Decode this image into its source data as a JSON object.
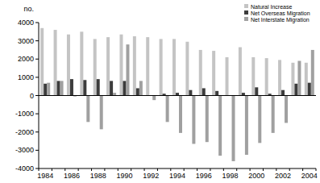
{
  "chart_data": {
    "type": "bar",
    "y_label": "no.",
    "categories": [
      "1984",
      null,
      "1986",
      null,
      "1988",
      null,
      "1990",
      null,
      "1992",
      null,
      "1994",
      null,
      "1996",
      null,
      "1998",
      null,
      "2000",
      null,
      "2002",
      null,
      "2004"
    ],
    "series": [
      {
        "name": "Natural Increase",
        "color": "#c4c4c4",
        "values": [
          3700,
          3600,
          3350,
          3500,
          3100,
          3200,
          3350,
          3250,
          3200,
          3100,
          3100,
          2950,
          2500,
          2450,
          2100,
          2650,
          2100,
          2050,
          1950,
          1800,
          1800
        ]
      },
      {
        "name": "Net Overseas Migration",
        "color": "#3c3c3c",
        "values": [
          650,
          800,
          900,
          850,
          900,
          800,
          800,
          400,
          0,
          100,
          150,
          300,
          400,
          250,
          0,
          150,
          450,
          100,
          300,
          650,
          700
        ]
      },
      {
        "name": "Net Interstate Migration",
        "color": "#a0a0a0",
        "values": [
          700,
          800,
          -50,
          -1450,
          -1850,
          150,
          2800,
          800,
          -250,
          -1450,
          -2050,
          -2650,
          -2550,
          -3300,
          -3600,
          -3250,
          -2600,
          -2050,
          -1500,
          1900,
          2500
        ]
      }
    ],
    "ylim": [
      -4000,
      4000
    ],
    "yticks": [
      -4000,
      -3000,
      -2000,
      -1000,
      0,
      1000,
      2000,
      3000,
      4000
    ],
    "legend": "top-right",
    "grid": false
  }
}
